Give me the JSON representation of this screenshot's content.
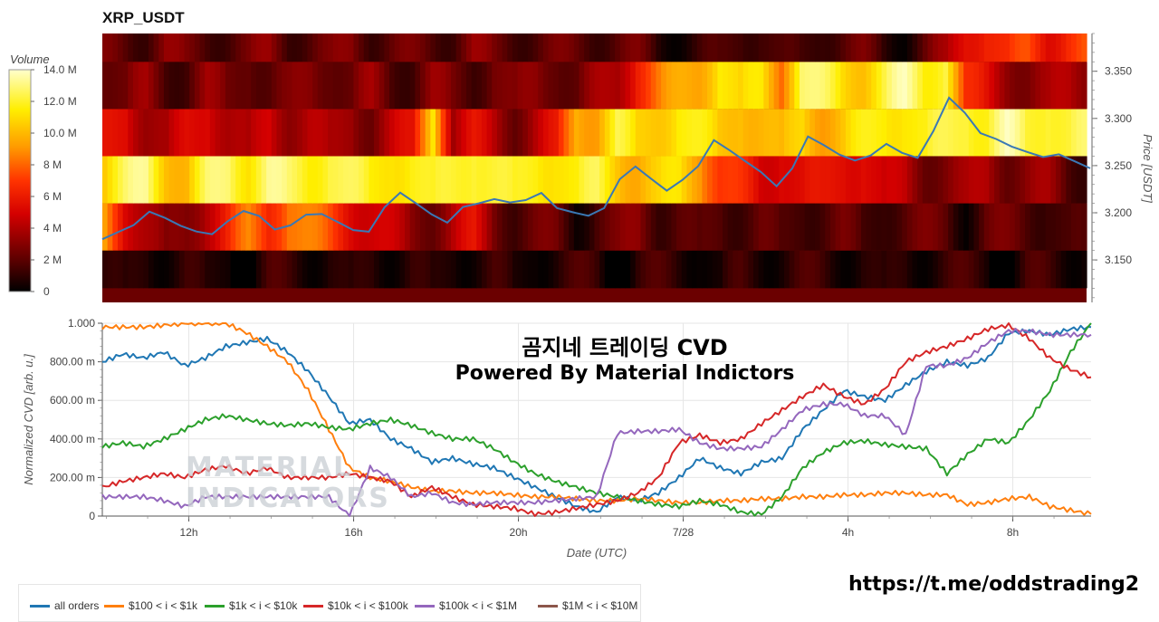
{
  "title": "XRP_USDT",
  "colorbar": {
    "label": "Volume",
    "ticks": [
      "0",
      "2 M",
      "4 M",
      "6 M",
      "8 M",
      "10.0 M",
      "12.0 M",
      "14.0 M"
    ],
    "tick_values": [
      0,
      2000000,
      4000000,
      6000000,
      8000000,
      10000000,
      12000000,
      14000000
    ],
    "max": 14000000
  },
  "overlay_text": {
    "line1": "곰지네 트레이딩 CVD",
    "line2": "Powered By Material Indictors"
  },
  "watermark": {
    "line1": "MATERIAL",
    "line2": "INDICATORS"
  },
  "telegram_link": "https://t.me/oddstrading2",
  "chart_data": [
    {
      "type": "heatmap",
      "title": "XRP_USDT",
      "ylabel": "Price [USDT]",
      "ylim": [
        3.105,
        3.39
      ],
      "y_ticks": [
        "3.150",
        "3.200",
        "3.250",
        "3.300",
        "3.350"
      ],
      "y_tick_values": [
        3.15,
        3.2,
        3.25,
        3.3,
        3.35
      ],
      "price_bands": [
        {
          "low": 3.12,
          "high": 3.16,
          "pattern": [
            1,
            0,
            1,
            1,
            1,
            0,
            1,
            0,
            1,
            1,
            1,
            1,
            0,
            1,
            1,
            1,
            0,
            1,
            1,
            1,
            0,
            1,
            1,
            1,
            1,
            0,
            1,
            1,
            1,
            1,
            0,
            1,
            1,
            1,
            1,
            1,
            1,
            1,
            0,
            1,
            1,
            1,
            1,
            1,
            0,
            1,
            1,
            1
          ]
        },
        {
          "low": 3.16,
          "high": 3.21,
          "pattern": [
            9,
            6,
            4,
            2,
            3,
            5,
            6,
            8,
            7,
            9,
            8,
            7,
            6,
            5,
            4,
            3,
            3,
            4,
            5,
            3,
            2,
            2,
            2,
            1,
            2,
            2,
            3,
            2,
            2,
            1,
            2,
            2,
            2,
            1,
            2,
            2,
            2,
            1,
            2,
            2,
            2,
            2,
            1,
            2,
            2,
            2,
            2,
            1
          ]
        },
        {
          "low": 3.21,
          "high": 3.26,
          "pattern": [
            11,
            12,
            13,
            11,
            10,
            12,
            13,
            12,
            13,
            12,
            12,
            13,
            12,
            11,
            12,
            12,
            11,
            12,
            13,
            12,
            11,
            12,
            12,
            11,
            12,
            11,
            10,
            10,
            11,
            10,
            7,
            6,
            5,
            6,
            5,
            5,
            6,
            6,
            4,
            4,
            3,
            3,
            3,
            4,
            3,
            3,
            3,
            2
          ]
        },
        {
          "low": 3.26,
          "high": 3.31,
          "pattern": [
            5,
            6,
            4,
            3,
            5,
            6,
            4,
            3,
            5,
            4,
            4,
            3,
            4,
            3,
            4,
            5,
            12,
            4,
            5,
            4,
            3,
            4,
            5,
            10,
            10,
            12,
            10,
            11,
            12,
            11,
            10,
            11,
            10,
            9,
            11,
            10,
            10,
            11,
            12,
            12,
            11,
            12,
            13,
            12,
            13,
            12,
            13,
            12
          ]
        },
        {
          "low": 3.31,
          "high": 3.36,
          "pattern": [
            3,
            2,
            3,
            2,
            2,
            3,
            2,
            3,
            2,
            2,
            3,
            3,
            2,
            3,
            2,
            2,
            3,
            2,
            2,
            3,
            2,
            3,
            3,
            2,
            3,
            4,
            7,
            8,
            9,
            10,
            12,
            10,
            11,
            9,
            13,
            12,
            11,
            11,
            12,
            13,
            12,
            13,
            6,
            5,
            4,
            3,
            3,
            4
          ]
        },
        {
          "low": 3.36,
          "high": 3.4,
          "pattern": [
            2,
            2,
            2,
            3,
            2,
            2,
            2,
            2,
            3,
            2,
            2,
            2,
            3,
            2,
            2,
            2,
            2,
            2,
            3,
            2,
            2,
            2,
            2,
            2,
            2,
            2,
            2,
            1,
            1,
            1,
            1,
            2,
            2,
            1,
            1,
            2,
            2,
            2,
            1,
            1,
            2,
            3,
            6,
            7,
            6,
            7,
            6,
            7
          ]
        }
      ],
      "price_line": {
        "name": "price",
        "values": [
          3.172,
          3.178,
          3.185,
          3.2,
          3.195,
          3.188,
          3.182,
          3.178,
          3.19,
          3.2,
          3.195,
          3.182,
          3.188,
          3.2,
          3.2,
          3.19,
          3.18,
          3.178,
          3.205,
          3.222,
          3.212,
          3.2,
          3.19,
          3.205,
          3.208,
          3.213,
          3.211,
          3.215,
          3.223,
          3.206,
          3.2,
          3.195,
          3.203,
          3.235,
          3.25,
          3.238,
          3.225,
          3.235,
          3.248,
          3.275,
          3.265,
          3.255,
          3.245,
          3.23,
          3.248,
          3.28,
          3.27,
          3.26,
          3.255,
          3.262,
          3.275,
          3.265,
          3.258,
          3.285,
          3.32,
          3.305,
          3.285,
          3.28,
          3.272,
          3.265,
          3.258,
          3.26,
          3.253,
          3.247
        ]
      }
    },
    {
      "type": "line",
      "xlabel": "Date (UTC)",
      "ylabel": "Normalized CVD [arb. u.]",
      "ylim": [
        0,
        1
      ],
      "y_ticks": [
        "0",
        "200.00 m",
        "400.00 m",
        "600.00 m",
        "800.00 m",
        "1.000"
      ],
      "y_tick_values": [
        0,
        0.2,
        0.4,
        0.6,
        0.8,
        1.0
      ],
      "x_ticks": [
        "12h",
        "16h",
        "20h",
        "7/28",
        "4h",
        "8h"
      ],
      "x_tick_values": [
        2.1,
        6.1,
        10.1,
        14.1,
        18.1,
        22.1
      ],
      "xlim": [
        0,
        24
      ],
      "series": [
        {
          "name": "all orders",
          "color": "#1f77b4",
          "x": [
            0,
            0.5,
            1,
            1.5,
            2,
            2.5,
            3,
            3.5,
            4,
            4.5,
            5,
            5.5,
            6,
            6.5,
            7,
            7.5,
            8,
            8.5,
            9,
            9.5,
            10,
            10.5,
            11,
            11.5,
            12,
            12.5,
            13,
            13.5,
            14,
            14.5,
            15,
            15.5,
            16,
            16.5,
            17,
            17.5,
            18,
            18.5,
            19,
            19.5,
            20,
            20.5,
            21,
            21.5,
            22,
            22.5,
            23,
            23.5,
            24
          ],
          "values": [
            0.8,
            0.84,
            0.82,
            0.85,
            0.78,
            0.82,
            0.88,
            0.9,
            0.92,
            0.85,
            0.75,
            0.62,
            0.48,
            0.5,
            0.4,
            0.35,
            0.28,
            0.3,
            0.27,
            0.25,
            0.2,
            0.15,
            0.1,
            0.05,
            0.02,
            0.1,
            0.08,
            0.12,
            0.2,
            0.3,
            0.25,
            0.22,
            0.28,
            0.3,
            0.45,
            0.55,
            0.65,
            0.62,
            0.6,
            0.68,
            0.75,
            0.8,
            0.78,
            0.82,
            0.95,
            0.96,
            0.94,
            0.97,
            0.98
          ]
        },
        {
          "name": "$100 < i < $1k",
          "color": "#ff7f0e",
          "x": [
            0,
            0.5,
            1,
            1.5,
            2,
            2.5,
            3,
            3.5,
            4,
            4.5,
            5,
            5.5,
            6,
            6.5,
            7,
            7.5,
            8,
            8.5,
            9,
            9.5,
            10,
            10.5,
            11,
            11.5,
            12,
            12.5,
            13,
            13.5,
            14,
            14.5,
            15,
            15.5,
            16,
            16.5,
            17,
            17.5,
            18,
            18.5,
            19,
            19.5,
            20,
            20.5,
            21,
            21.5,
            22,
            22.5,
            23,
            23.5,
            24
          ],
          "values": [
            0.98,
            0.98,
            0.98,
            0.99,
            1.0,
            1.0,
            1.0,
            0.95,
            0.88,
            0.8,
            0.65,
            0.45,
            0.25,
            0.2,
            0.18,
            0.15,
            0.13,
            0.13,
            0.12,
            0.12,
            0.11,
            0.1,
            0.1,
            0.09,
            0.08,
            0.08,
            0.09,
            0.08,
            0.07,
            0.07,
            0.08,
            0.08,
            0.09,
            0.09,
            0.1,
            0.1,
            0.11,
            0.11,
            0.12,
            0.12,
            0.11,
            0.11,
            0.06,
            0.07,
            0.09,
            0.1,
            0.05,
            0.03,
            0.01
          ]
        },
        {
          "name": "$1k < i < $10k",
          "color": "#2ca02c",
          "x": [
            0,
            0.5,
            1,
            1.5,
            2,
            2.5,
            3,
            3.5,
            4,
            4.5,
            5,
            5.5,
            6,
            6.5,
            7,
            7.5,
            8,
            8.5,
            9,
            9.5,
            10,
            10.5,
            11,
            11.5,
            12,
            12.5,
            13,
            13.5,
            14,
            14.5,
            15,
            15.5,
            16,
            16.5,
            17,
            17.5,
            18,
            18.5,
            19,
            19.5,
            20,
            20.5,
            21,
            21.5,
            22,
            22.5,
            23,
            23.5,
            24
          ],
          "values": [
            0.36,
            0.38,
            0.36,
            0.4,
            0.45,
            0.5,
            0.52,
            0.5,
            0.48,
            0.47,
            0.48,
            0.46,
            0.45,
            0.48,
            0.5,
            0.47,
            0.43,
            0.4,
            0.4,
            0.35,
            0.28,
            0.22,
            0.18,
            0.15,
            0.12,
            0.1,
            0.08,
            0.06,
            0.05,
            0.08,
            0.06,
            0.02,
            0.01,
            0.1,
            0.25,
            0.33,
            0.38,
            0.39,
            0.37,
            0.36,
            0.35,
            0.22,
            0.32,
            0.4,
            0.38,
            0.5,
            0.65,
            0.85,
            1.0
          ]
        },
        {
          "name": "$10k < i < $100k",
          "color": "#d62728",
          "x": [
            0,
            0.5,
            1,
            1.5,
            2,
            2.5,
            3,
            3.5,
            4,
            4.5,
            5,
            5.5,
            6,
            6.5,
            7,
            7.5,
            8,
            8.5,
            9,
            9.5,
            10,
            10.5,
            11,
            11.5,
            12,
            12.5,
            13,
            13.5,
            14,
            14.5,
            15,
            15.5,
            16,
            16.5,
            17,
            17.5,
            18,
            18.5,
            19,
            19.5,
            20,
            20.5,
            21,
            21.5,
            22,
            22.5,
            23,
            23.5,
            24
          ],
          "values": [
            0.15,
            0.18,
            0.2,
            0.22,
            0.2,
            0.24,
            0.26,
            0.22,
            0.25,
            0.2,
            0.2,
            0.2,
            0.22,
            0.2,
            0.18,
            0.1,
            0.15,
            0.1,
            0.06,
            0.05,
            0.04,
            0.01,
            0.02,
            0.04,
            0.06,
            0.08,
            0.12,
            0.2,
            0.38,
            0.42,
            0.38,
            0.4,
            0.48,
            0.55,
            0.62,
            0.68,
            0.62,
            0.58,
            0.66,
            0.8,
            0.85,
            0.88,
            0.92,
            0.97,
            0.99,
            0.92,
            0.82,
            0.76,
            0.72
          ]
        },
        {
          "name": "$100k < i < $1M",
          "color": "#9467bd",
          "x": [
            0,
            0.5,
            1,
            1.5,
            2,
            2.5,
            3,
            3.5,
            4,
            4.5,
            5,
            5.5,
            6,
            6.5,
            7,
            7.5,
            8,
            8.5,
            9,
            9.5,
            10,
            10.5,
            11,
            11.5,
            12,
            12.5,
            13,
            13.5,
            14,
            14.5,
            15,
            15.5,
            16,
            16.5,
            17,
            17.5,
            18,
            18.5,
            19,
            19.5,
            20,
            20.5,
            21,
            21.5,
            22,
            22.5,
            23,
            23.5,
            24
          ],
          "values": [
            0.1,
            0.1,
            0.1,
            0.08,
            0.05,
            0.1,
            0.1,
            0.1,
            0.1,
            0.1,
            0.1,
            0.1,
            0.0,
            0.25,
            0.2,
            0.1,
            0.12,
            0.07,
            0.06,
            0.07,
            0.07,
            0.07,
            0.08,
            0.09,
            0.1,
            0.43,
            0.44,
            0.44,
            0.45,
            0.38,
            0.35,
            0.35,
            0.36,
            0.45,
            0.55,
            0.58,
            0.58,
            0.52,
            0.52,
            0.42,
            0.78,
            0.78,
            0.82,
            0.9,
            0.96,
            0.96,
            0.94,
            0.94,
            0.94
          ]
        },
        {
          "name": "$1M < i < $10M",
          "color": "#8c564b",
          "x": [],
          "values": []
        }
      ]
    }
  ]
}
